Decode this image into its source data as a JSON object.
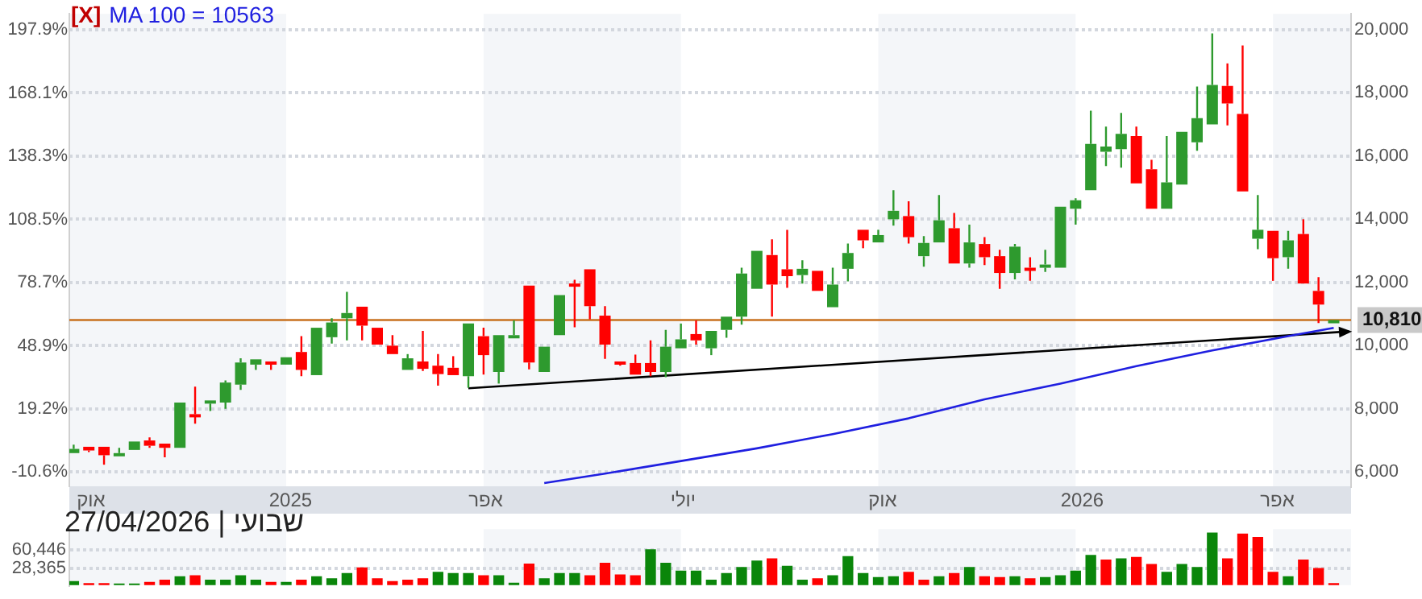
{
  "chart_data": [
    {
      "type": "candlestick",
      "x": [
        "2024-09-23",
        "2024-09-30",
        "2024-10-07",
        "2024-10-14",
        "2024-10-21",
        "2024-10-28",
        "2024-11-04",
        "2024-11-11",
        "2024-11-18",
        "2024-11-25",
        "2024-12-02",
        "2024-12-09",
        "2024-12-16",
        "2024-12-23",
        "2024-12-30",
        "2025-01-06",
        "2025-01-13",
        "2025-01-20",
        "2025-01-27",
        "2025-02-03",
        "2025-02-10",
        "2025-02-17",
        "2025-02-24",
        "2025-03-03",
        "2025-03-10",
        "2025-03-17",
        "2025-03-24",
        "2025-03-31",
        "2025-04-07",
        "2025-04-14",
        "2025-04-21",
        "2025-04-28",
        "2025-05-05",
        "2025-05-12",
        "2025-05-19",
        "2025-05-26",
        "2025-06-02",
        "2025-06-09",
        "2025-06-16",
        "2025-06-23",
        "2025-06-30",
        "2025-07-07",
        "2025-07-14",
        "2025-07-21",
        "2025-07-28",
        "2025-08-04",
        "2025-08-11",
        "2025-08-18",
        "2025-08-25",
        "2025-09-01",
        "2025-09-08",
        "2025-09-15",
        "2025-09-22",
        "2025-09-29",
        "2025-10-06",
        "2025-10-13",
        "2025-10-20",
        "2025-10-27",
        "2025-11-03",
        "2025-11-10",
        "2025-11-17",
        "2025-11-24",
        "2025-12-01",
        "2025-12-08",
        "2025-12-15",
        "2025-12-22",
        "2025-12-29",
        "2026-01-05",
        "2026-01-12",
        "2026-01-19",
        "2026-01-26",
        "2026-02-02",
        "2026-02-09",
        "2026-02-16",
        "2026-02-23",
        "2026-03-02",
        "2026-03-09",
        "2026-03-16",
        "2026-03-23",
        "2026-03-30",
        "2026-04-06",
        "2026-04-13",
        "2026-04-20",
        "2026-04-27"
      ],
      "ohlc": [
        [
          6600,
          6867,
          6600,
          6733
        ],
        [
          6800,
          6800,
          6633,
          6683
        ],
        [
          6800,
          6800,
          6233,
          6533
        ],
        [
          6533,
          6767,
          6533,
          6600
        ],
        [
          6700,
          6967,
          6700,
          6967
        ],
        [
          7000,
          7100,
          6767,
          6833
        ],
        [
          6900,
          6900,
          6467,
          6767
        ],
        [
          6767,
          8200,
          6767,
          8200
        ],
        [
          7833,
          8700,
          7533,
          7767
        ],
        [
          8167,
          8267,
          7933,
          8267
        ],
        [
          8200,
          8900,
          8000,
          8833
        ],
        [
          8767,
          9600,
          8600,
          9467
        ],
        [
          9400,
          9567,
          9233,
          9567
        ],
        [
          9500,
          9500,
          9233,
          9433
        ],
        [
          9400,
          9633,
          9400,
          9633
        ],
        [
          9800,
          10300,
          9033,
          9233
        ],
        [
          9067,
          10567,
          9067,
          10567
        ],
        [
          10267,
          10867,
          10067,
          10733
        ],
        [
          10867,
          11700,
          10167,
          11033
        ],
        [
          11233,
          11233,
          10167,
          10633
        ],
        [
          10567,
          10567,
          10033,
          10033
        ],
        [
          10000,
          10333,
          9733,
          9733
        ],
        [
          9233,
          9733,
          9233,
          9600
        ],
        [
          9500,
          10467,
          9200,
          9267
        ],
        [
          9367,
          9733,
          8733,
          9100
        ],
        [
          9300,
          9667,
          9067,
          9067
        ],
        [
          9033,
          10700,
          8667,
          10700
        ],
        [
          10300,
          10567,
          9083,
          9700
        ],
        [
          9167,
          10333,
          8800,
          10333
        ],
        [
          10267,
          10800,
          10267,
          10333
        ],
        [
          11900,
          11900,
          9250,
          9467
        ],
        [
          9167,
          9967,
          9167,
          9967
        ],
        [
          10333,
          11600,
          10333,
          11600
        ],
        [
          11967,
          12083,
          10583,
          11900
        ],
        [
          12417,
          12417,
          10833,
          11250
        ],
        [
          10950,
          11250,
          9583,
          10033
        ],
        [
          9500,
          9500,
          9367,
          9433
        ],
        [
          9450,
          9717,
          9083,
          9083
        ],
        [
          9450,
          10167,
          9033,
          9167
        ],
        [
          9167,
          10500,
          9000,
          9967
        ],
        [
          9917,
          10700,
          9917,
          10200
        ],
        [
          10367,
          10800,
          10033,
          10167
        ],
        [
          9917,
          10467,
          9700,
          10467
        ],
        [
          10500,
          10917,
          10250,
          10917
        ],
        [
          10917,
          12467,
          10667,
          12283
        ],
        [
          11800,
          13000,
          11800,
          13000
        ],
        [
          12867,
          13367,
          10917,
          11933
        ],
        [
          12417,
          13667,
          11833,
          12200
        ],
        [
          12233,
          12700,
          11967,
          12433
        ],
        [
          12367,
          12367,
          11733,
          11733
        ],
        [
          11217,
          12467,
          11217,
          11933
        ],
        [
          12433,
          13233,
          12033,
          12933
        ],
        [
          13667,
          13667,
          13083,
          13333
        ],
        [
          13267,
          13667,
          13267,
          13500
        ],
        [
          14000,
          14917,
          13800,
          14267
        ],
        [
          14100,
          14567,
          13233,
          13433
        ],
        [
          12833,
          13467,
          12500,
          13250
        ],
        [
          13267,
          14767,
          13267,
          13967
        ],
        [
          13717,
          14200,
          12600,
          12600
        ],
        [
          12600,
          13833,
          12467,
          13267
        ],
        [
          13217,
          13433,
          12550,
          12800
        ],
        [
          12833,
          13033,
          11800,
          12300
        ],
        [
          12300,
          13217,
          12100,
          13133
        ],
        [
          12467,
          12800,
          12050,
          12400
        ],
        [
          12467,
          13033,
          12333,
          12567
        ],
        [
          12467,
          14400,
          12467,
          14400
        ],
        [
          14333,
          14667,
          13833,
          14600
        ],
        [
          14917,
          17433,
          14917,
          16383
        ],
        [
          16133,
          16933,
          15683,
          16300
        ],
        [
          16217,
          17367,
          15633,
          16700
        ],
        [
          16633,
          16933,
          15133,
          15133
        ],
        [
          15583,
          15883,
          14333,
          14333
        ],
        [
          14333,
          16633,
          14333,
          15167
        ],
        [
          15100,
          16767,
          15100,
          16767
        ],
        [
          16433,
          18200,
          16167,
          17200
        ],
        [
          17000,
          19883,
          17000,
          18250
        ],
        [
          18217,
          18933,
          16967,
          17667
        ],
        [
          17333,
          19500,
          14883,
          14883
        ],
        [
          13383,
          14767,
          13050,
          13667
        ],
        [
          13633,
          13633,
          12050,
          12767
        ],
        [
          12800,
          13633,
          12433,
          13333
        ],
        [
          13533,
          14000,
          11967,
          11967
        ],
        [
          11733,
          12167,
          10717,
          11300
        ],
        [
          10733,
          10810,
          10733,
          10810
        ]
      ],
      "colors": [
        "#2e9a2e",
        "#ff0000",
        "#ff0000",
        "#2e9a2e",
        "#2e9a2e",
        "#ff0000",
        "#ff0000",
        "#2e9a2e",
        "#ff0000",
        "#2e9a2e",
        "#2e9a2e",
        "#2e9a2e",
        "#2e9a2e",
        "#ff0000",
        "#2e9a2e",
        "#ff0000",
        "#2e9a2e",
        "#2e9a2e",
        "#2e9a2e",
        "#ff0000",
        "#ff0000",
        "#ff0000",
        "#2e9a2e",
        "#ff0000",
        "#ff0000",
        "#ff0000",
        "#2e9a2e",
        "#ff0000",
        "#2e9a2e",
        "#2e9a2e",
        "#ff0000",
        "#2e9a2e",
        "#2e9a2e",
        "#ff0000",
        "#ff0000",
        "#ff0000",
        "#ff0000",
        "#ff0000",
        "#ff0000",
        "#2e9a2e",
        "#2e9a2e",
        "#ff0000",
        "#2e9a2e",
        "#2e9a2e",
        "#2e9a2e",
        "#2e9a2e",
        "#ff0000",
        "#ff0000",
        "#2e9a2e",
        "#ff0000",
        "#2e9a2e",
        "#2e9a2e",
        "#ff0000",
        "#2e9a2e",
        "#2e9a2e",
        "#ff0000",
        "#2e9a2e",
        "#2e9a2e",
        "#ff0000",
        "#2e9a2e",
        "#ff0000",
        "#ff0000",
        "#2e9a2e",
        "#ff0000",
        "#2e9a2e",
        "#2e9a2e",
        "#2e9a2e",
        "#2e9a2e",
        "#2e9a2e",
        "#2e9a2e",
        "#ff0000",
        "#ff0000",
        "#2e9a2e",
        "#2e9a2e",
        "#2e9a2e",
        "#2e9a2e",
        "#ff0000",
        "#ff0000",
        "#2e9a2e",
        "#ff0000",
        "#2e9a2e",
        "#ff0000",
        "#ff0000",
        "#2e9a2e"
      ],
      "series": [
        {
          "type": "line",
          "name": "MA 100 = 10563",
          "color": "#1f1fe0",
          "x": [
            "2025-04-28",
            "2025-05-26",
            "2025-06-30",
            "2025-08-04",
            "2025-09-08",
            "2025-10-13",
            "2025-11-17",
            "2025-12-22",
            "2026-01-26",
            "2026-03-02",
            "2026-04-06",
            "2026-04-27"
          ],
          "values": [
            5650,
            5950,
            6350,
            6750,
            7200,
            7700,
            8300,
            8800,
            9350,
            9850,
            10300,
            10563
          ]
        },
        {
          "type": "line",
          "color": "#000000",
          "x": [
            "2025-03-24",
            "2026-05-04"
          ],
          "values": [
            8650,
            10450
          ]
        }
      ],
      "xlim": [
        "2024-09-21",
        "2026-05-05"
      ],
      "xticks": [
        {
          "value": "2024-10-01",
          "label": "אוק"
        },
        {
          "value": "2025-01-01",
          "label": "2025"
        },
        {
          "value": "2025-04-01",
          "label": "אפר"
        },
        {
          "value": "2025-07-01",
          "label": "יולי"
        },
        {
          "value": "2025-10-01",
          "label": "אוק"
        },
        {
          "value": "2026-01-01",
          "label": "2026"
        },
        {
          "value": "2026-04-01",
          "label": "אפר"
        }
      ],
      "ylim": [
        5550,
        20500
      ],
      "yticks": [
        {
          "value": 6000,
          "label": "6,000"
        },
        {
          "value": 8000,
          "label": "8,000"
        },
        {
          "value": 10000,
          "label": "10,000"
        },
        {
          "value": 12000,
          "label": "12,000"
        },
        {
          "value": 14000,
          "label": "14,000"
        },
        {
          "value": 16000,
          "label": "16,000"
        },
        {
          "value": 18000,
          "label": "18,000"
        },
        {
          "value": 20000,
          "label": "20,000"
        }
      ],
      "y2lim": [
        -17.3,
        205.4
      ],
      "y2ticks": [
        {
          "value": -10.6,
          "label": "-10.6%"
        },
        {
          "value": 19.2,
          "label": "19.2%"
        },
        {
          "value": 48.9,
          "label": "48.9%"
        },
        {
          "value": 78.7,
          "label": "78.7%"
        },
        {
          "value": 108.5,
          "label": "108.5%"
        },
        {
          "value": 138.3,
          "label": "138.3%"
        },
        {
          "value": 168.1,
          "label": "168.1%"
        },
        {
          "value": 197.9,
          "label": "197.9%"
        }
      ],
      "grid": "y",
      "legend": "top left",
      "ref_lines": [
        {
          "axis": "y",
          "value": 10810,
          "label": "10,810",
          "color": "#c8701e"
        }
      ],
      "bands": [
        {
          "axis": "x",
          "from": "2024-09-21",
          "to": "2024-12-30",
          "color": "#f4f6f9"
        },
        {
          "axis": "x",
          "from": "2025-03-31",
          "to": "2025-06-30",
          "color": "#f4f6f9"
        },
        {
          "axis": "x",
          "from": "2025-09-29",
          "to": "2025-12-29",
          "color": "#f4f6f9"
        },
        {
          "axis": "x",
          "from": "2026-03-30",
          "to": "2026-05-05",
          "color": "#f4f6f9"
        }
      ],
      "annotations": [
        "[X]"
      ]
    },
    {
      "type": "bar",
      "x": [
        "2024-09-23",
        "2024-09-30",
        "2024-10-07",
        "2024-10-14",
        "2024-10-21",
        "2024-10-28",
        "2024-11-04",
        "2024-11-11",
        "2024-11-18",
        "2024-11-25",
        "2024-12-02",
        "2024-12-09",
        "2024-12-16",
        "2024-12-23",
        "2024-12-30",
        "2025-01-06",
        "2025-01-13",
        "2025-01-20",
        "2025-01-27",
        "2025-02-03",
        "2025-02-10",
        "2025-02-17",
        "2025-02-24",
        "2025-03-03",
        "2025-03-10",
        "2025-03-17",
        "2025-03-24",
        "2025-03-31",
        "2025-04-07",
        "2025-04-14",
        "2025-04-21",
        "2025-04-28",
        "2025-05-05",
        "2025-05-12",
        "2025-05-19",
        "2025-05-26",
        "2025-06-02",
        "2025-06-09",
        "2025-06-16",
        "2025-06-23",
        "2025-06-30",
        "2025-07-07",
        "2025-07-14",
        "2025-07-21",
        "2025-07-28",
        "2025-08-04",
        "2025-08-11",
        "2025-08-18",
        "2025-08-25",
        "2025-09-01",
        "2025-09-08",
        "2025-09-15",
        "2025-09-22",
        "2025-09-29",
        "2025-10-06",
        "2025-10-13",
        "2025-10-20",
        "2025-10-27",
        "2025-11-03",
        "2025-11-10",
        "2025-11-17",
        "2025-11-24",
        "2025-12-01",
        "2025-12-08",
        "2025-12-15",
        "2025-12-22",
        "2025-12-29",
        "2026-01-05",
        "2026-01-12",
        "2026-01-19",
        "2026-01-26",
        "2026-02-02",
        "2026-02-09",
        "2026-02-16",
        "2026-02-23",
        "2026-03-02",
        "2026-03-09",
        "2026-03-16",
        "2026-03-23",
        "2026-03-30",
        "2026-04-06",
        "2026-04-13",
        "2026-04-20",
        "2026-04-27"
      ],
      "values": [
        5900,
        2700,
        2700,
        2000,
        2000,
        4600,
        8500,
        14200,
        16200,
        8500,
        8500,
        16200,
        8500,
        4600,
        4600,
        8500,
        14200,
        11000,
        20000,
        29600,
        11000,
        5900,
        8500,
        11000,
        21900,
        20000,
        20000,
        16200,
        16200,
        3300,
        36100,
        11000,
        20000,
        20000,
        16200,
        37300,
        17450,
        16200,
        60450,
        37300,
        23900,
        23900,
        8500,
        20000,
        30300,
        41200,
        45000,
        32200,
        8500,
        11000,
        16200,
        48900,
        20000,
        13000,
        14200,
        21900,
        8500,
        14200,
        20000,
        30300,
        14200,
        13000,
        14200,
        11000,
        13000,
        16200,
        23900,
        50800,
        43100,
        45000,
        47600,
        35400,
        21900,
        35400,
        30300,
        89300,
        45000,
        87400,
        81600,
        21900,
        14200,
        43100,
        28400,
        2700
      ],
      "colors": [
        "#0a860a",
        "#ff0000",
        "#ff0000",
        "#0a860a",
        "#0a860a",
        "#ff0000",
        "#ff0000",
        "#0a860a",
        "#ff0000",
        "#0a860a",
        "#0a860a",
        "#0a860a",
        "#0a860a",
        "#ff0000",
        "#0a860a",
        "#ff0000",
        "#0a860a",
        "#0a860a",
        "#0a860a",
        "#ff0000",
        "#ff0000",
        "#ff0000",
        "#ff0000",
        "#ff0000",
        "#0a860a",
        "#0a860a",
        "#0a860a",
        "#ff0000",
        "#0a860a",
        "#0a860a",
        "#ff0000",
        "#0a860a",
        "#0a860a",
        "#0a860a",
        "#ff0000",
        "#ff0000",
        "#ff0000",
        "#ff0000",
        "#0a860a",
        "#0a860a",
        "#0a860a",
        "#0a860a",
        "#0a860a",
        "#0a860a",
        "#0a860a",
        "#0a860a",
        "#ff0000",
        "#0a860a",
        "#0a860a",
        "#ff0000",
        "#0a860a",
        "#0a860a",
        "#0a860a",
        "#0a860a",
        "#0a860a",
        "#ff0000",
        "#ff0000",
        "#0a860a",
        "#ff0000",
        "#0a860a",
        "#ff0000",
        "#ff0000",
        "#0a860a",
        "#ff0000",
        "#0a860a",
        "#0a860a",
        "#0a860a",
        "#0a860a",
        "#ff0000",
        "#0a860a",
        "#ff0000",
        "#ff0000",
        "#0a860a",
        "#0a860a",
        "#0a860a",
        "#0a860a",
        "#ff0000",
        "#ff0000",
        "#ff0000",
        "#ff0000",
        "#0a860a",
        "#ff0000",
        "#ff0000",
        "#ff0000"
      ],
      "xlim": [
        "2024-09-21",
        "2026-05-05"
      ],
      "ylim": [
        0,
        96000
      ],
      "yticks": [
        {
          "value": 28365,
          "label": "28,365"
        },
        {
          "value": 60446,
          "label": "60,446"
        }
      ],
      "grid": "y",
      "tick_labels": "y",
      "bands": [
        {
          "axis": "x",
          "from": "2024-09-21",
          "to": "2024-12-30",
          "color": "#f4f6f9"
        },
        {
          "axis": "x",
          "from": "2025-03-31",
          "to": "2025-06-30",
          "color": "#f4f6f9"
        },
        {
          "axis": "x",
          "from": "2025-09-29",
          "to": "2025-12-29",
          "color": "#f4f6f9"
        },
        {
          "axis": "x",
          "from": "2026-03-30",
          "to": "2026-05-05",
          "color": "#f4f6f9"
        }
      ],
      "annotations": [
        "שבועי | 27/04/2026"
      ]
    }
  ]
}
